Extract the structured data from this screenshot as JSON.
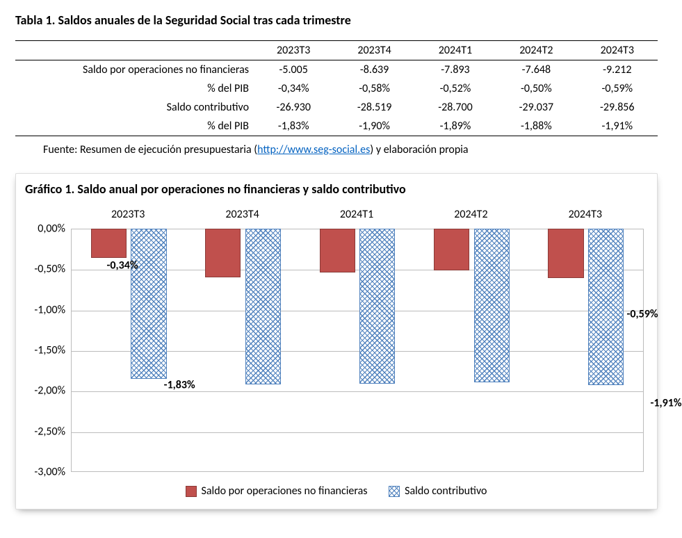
{
  "table": {
    "title": "Tabla 1. Saldos anuales de la Seguridad Social tras cada trimestre",
    "columns": [
      "2023T3",
      "2023T4",
      "2024T1",
      "2024T2",
      "2024T3"
    ],
    "rows": [
      {
        "label": "Saldo por operaciones no financieras",
        "cells": [
          "-5.005",
          "-8.639",
          "-7.893",
          "-7.648",
          "-9.212"
        ]
      },
      {
        "label": "% del PIB",
        "cells": [
          "-0,34%",
          "-0,58%",
          "-0,52%",
          "-0,50%",
          "-0,59%"
        ]
      },
      {
        "label": "Saldo contributivo",
        "cells": [
          "-26.930",
          "-28.519",
          "-28.700",
          "-29.037",
          "-29.856"
        ]
      },
      {
        "label": "% del PIB",
        "cells": [
          "-1,83%",
          "-1,90%",
          "-1,89%",
          "-1,88%",
          "-1,91%"
        ]
      }
    ],
    "source_prefix": "Fuente: Resumen de ejecución presupuestaria (",
    "source_link_text": "http://www.seg-social.es",
    "source_link_href": "http://www.seg-social.es",
    "source_suffix": ") y elaboración propia"
  },
  "chart": {
    "title": "Gráfico 1. Saldo anual por operaciones no financieras y saldo contributivo",
    "type": "bar",
    "categories": [
      "2023T3",
      "2023T4",
      "2024T1",
      "2024T2",
      "2024T3"
    ],
    "series": [
      {
        "name": "Saldo por operaciones no financieras",
        "style": "solid",
        "color": "#c0504d",
        "values": [
          -0.34,
          -0.58,
          -0.52,
          -0.5,
          -0.59
        ]
      },
      {
        "name": "Saldo contributivo",
        "style": "hatch",
        "color": "#4f81bd",
        "values": [
          -1.83,
          -1.9,
          -1.89,
          -1.88,
          -1.91
        ]
      }
    ],
    "ylim": [
      -3.0,
      0.0
    ],
    "ytick_step": 0.5,
    "ytick_labels": [
      "0,00%",
      "-0,50%",
      "-1,00%",
      "-1,50%",
      "-2,00%",
      "-2,50%",
      "-3,00%"
    ],
    "data_labels": [
      {
        "text": "-0,34%",
        "cat": 0,
        "y": -0.45,
        "align_x": "center-of-group"
      },
      {
        "text": "-1,83%",
        "cat": 0,
        "y": -1.93,
        "align_x": "right-edge"
      },
      {
        "text": "-0,59%",
        "cat": 4,
        "y": -1.05,
        "align_x": "right-outside"
      },
      {
        "text": "-1,91%",
        "cat": 4,
        "y": -2.15,
        "align_x": "far-right"
      }
    ],
    "grid_color": "#bcbcbc",
    "background_color": "#ffffff",
    "bar_group_gap_ratio": 0.35,
    "bar_gap_ratio": 0.08,
    "axis_fontsize": 16,
    "title_fontsize": 18,
    "datalabel_fontsize": 16,
    "datalabel_fontweight": 700
  }
}
